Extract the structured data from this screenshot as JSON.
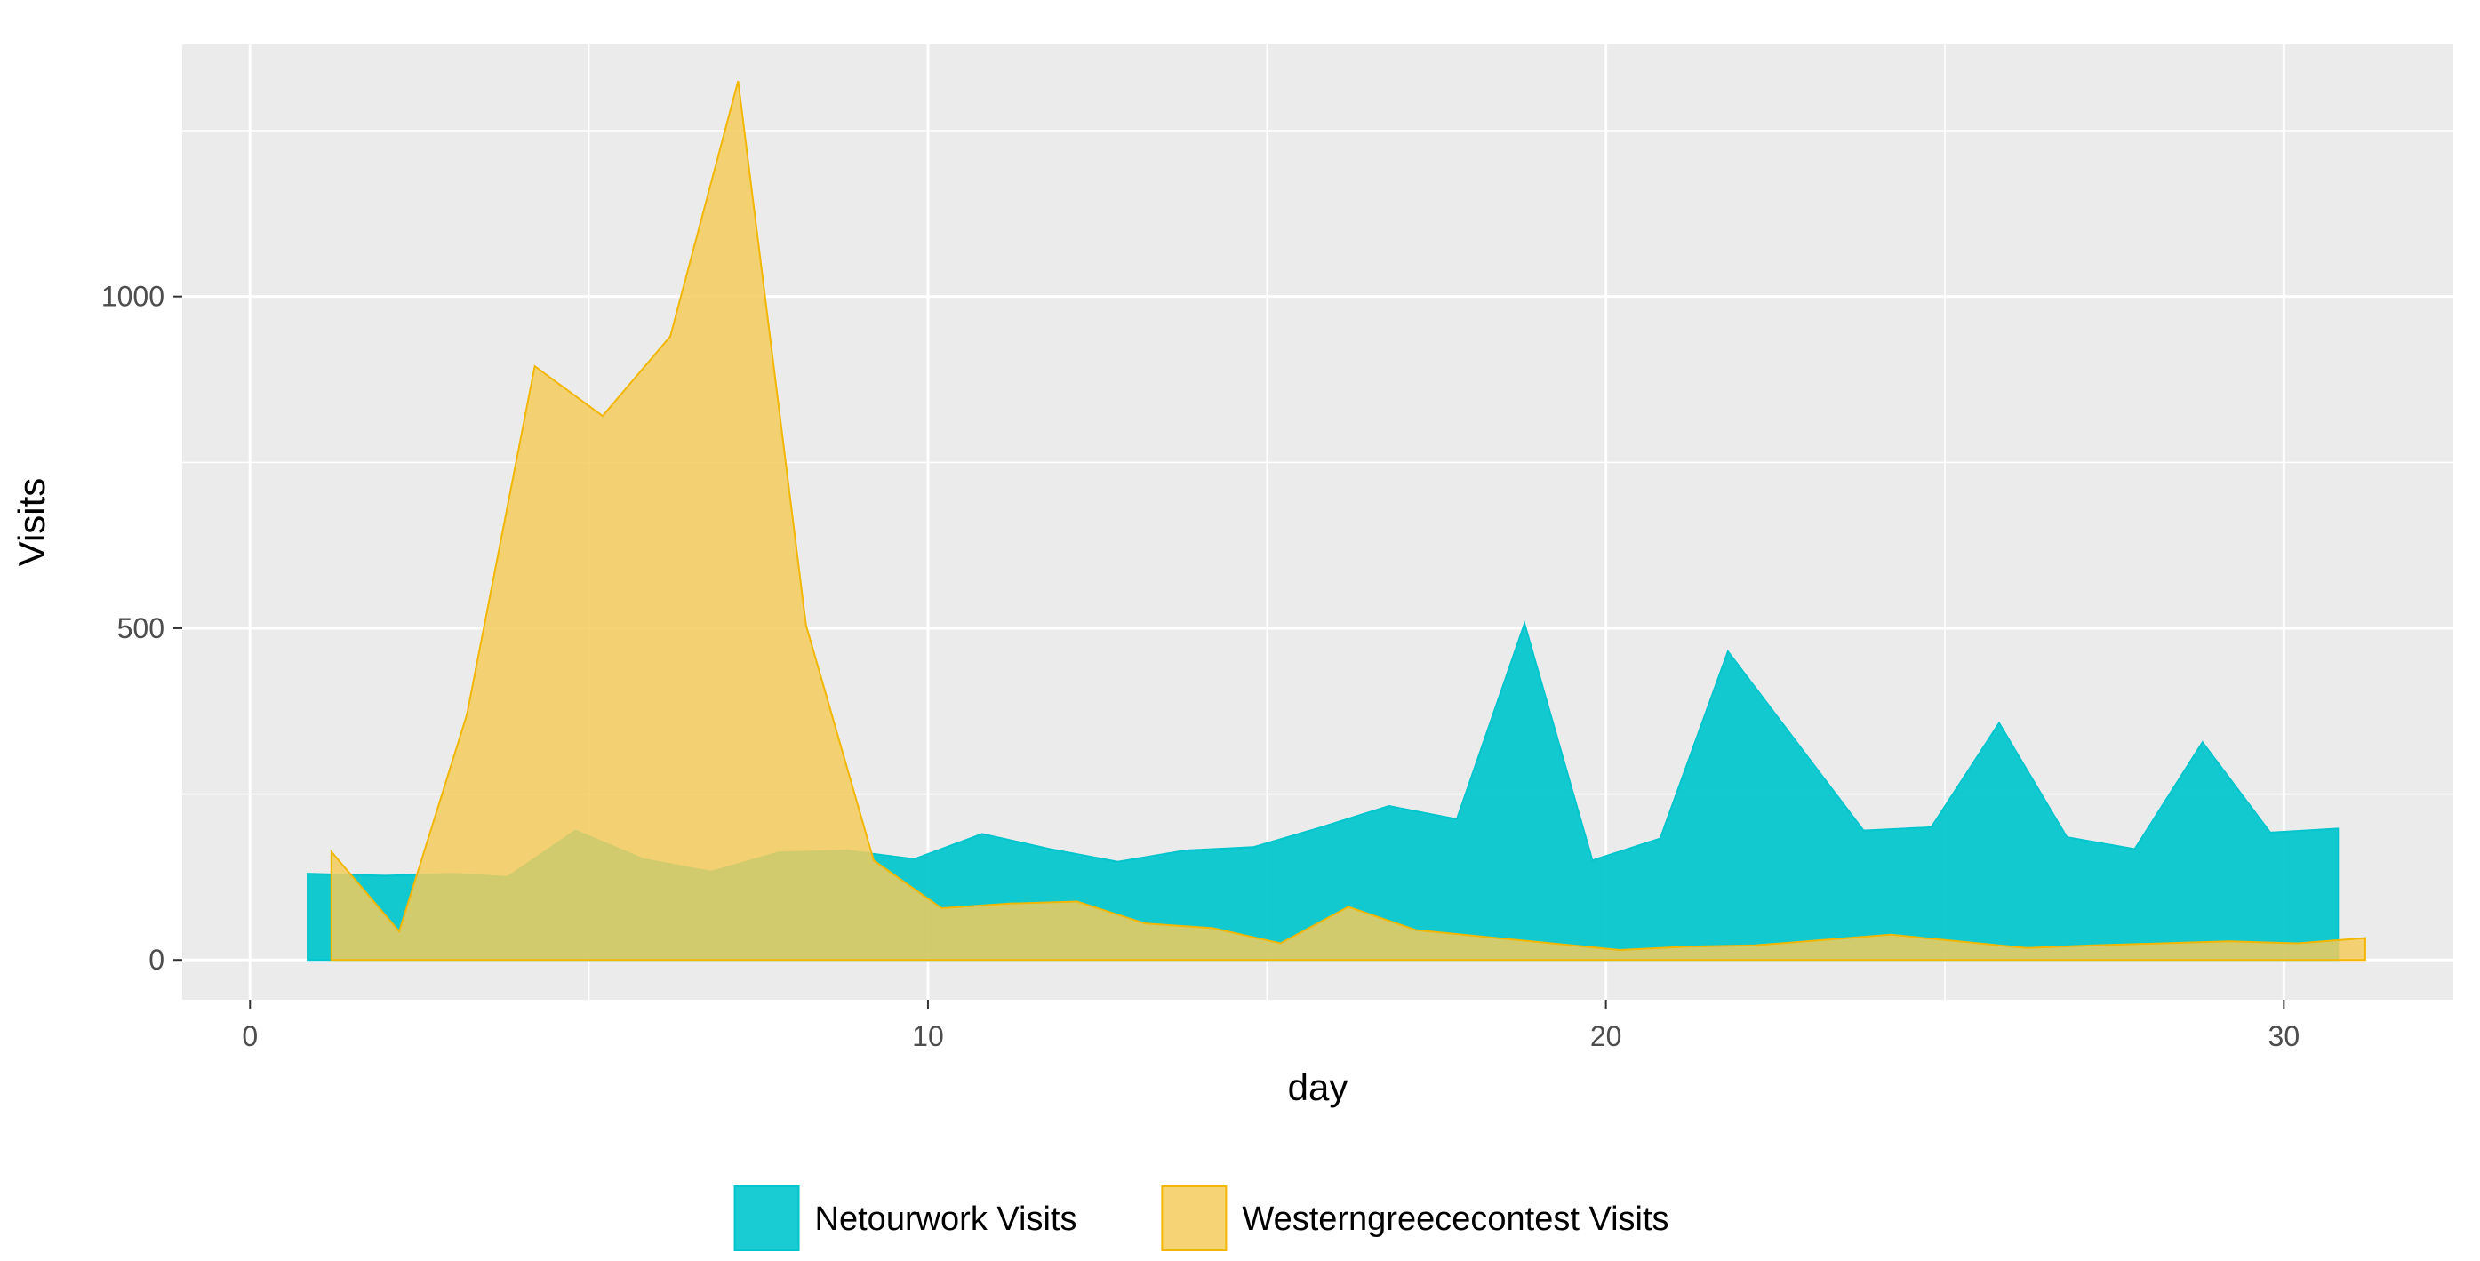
{
  "chart_data": {
    "type": "area",
    "title": "",
    "xlabel": "day",
    "ylabel": "Visits",
    "xlim": [
      -1.0,
      32.5
    ],
    "ylim": [
      -60,
      1380
    ],
    "x_ticks": [
      0,
      10,
      20,
      30
    ],
    "x_tick_labels": [
      "0",
      "10",
      "20",
      "30"
    ],
    "y_ticks": [
      0,
      500,
      1000
    ],
    "y_tick_labels": [
      "0",
      "500",
      "1000"
    ],
    "grid": true,
    "legend_position": "bottom",
    "series": [
      {
        "name": "Netourwork Visits",
        "fill": "#00C5CD",
        "stroke": "#00C5CD",
        "points": [
          [
            0.85,
            0
          ],
          [
            0.85,
            130
          ],
          [
            2,
            127
          ],
          [
            3,
            130
          ],
          [
            3.8,
            125
          ],
          [
            4.8,
            195
          ],
          [
            5.8,
            152
          ],
          [
            6.8,
            133
          ],
          [
            7.8,
            162
          ],
          [
            8.8,
            165
          ],
          [
            9.8,
            152
          ],
          [
            10.8,
            190
          ],
          [
            11.8,
            167
          ],
          [
            12.8,
            148
          ],
          [
            13.8,
            165
          ],
          [
            14.8,
            170
          ],
          [
            15.8,
            200
          ],
          [
            16.8,
            232
          ],
          [
            17.8,
            212
          ],
          [
            18.8,
            507
          ],
          [
            19.8,
            150
          ],
          [
            20.8,
            183
          ],
          [
            21.8,
            465
          ],
          [
            22.8,
            330
          ],
          [
            23.8,
            195
          ],
          [
            24.8,
            200
          ],
          [
            25.8,
            357
          ],
          [
            26.8,
            185
          ],
          [
            27.8,
            167
          ],
          [
            28.8,
            328
          ],
          [
            29.8,
            192
          ],
          [
            30.8,
            198
          ],
          [
            30.8,
            0
          ]
        ]
      },
      {
        "name": "Westerngreececontest Visits",
        "fill": "#F5CB5C",
        "stroke": "#F2B705",
        "points": [
          [
            1.2,
            0
          ],
          [
            1.2,
            163
          ],
          [
            2.2,
            43
          ],
          [
            3.2,
            370
          ],
          [
            4.2,
            895
          ],
          [
            5.2,
            820
          ],
          [
            6.2,
            940
          ],
          [
            7.2,
            1325
          ],
          [
            8.2,
            505
          ],
          [
            9.2,
            150
          ],
          [
            10.2,
            78
          ],
          [
            11.2,
            85
          ],
          [
            12.2,
            88
          ],
          [
            13.2,
            55
          ],
          [
            14.2,
            48
          ],
          [
            15.2,
            25
          ],
          [
            16.2,
            80
          ],
          [
            17.2,
            45
          ],
          [
            18.2,
            35
          ],
          [
            19.2,
            25
          ],
          [
            20.2,
            15
          ],
          [
            21.2,
            20
          ],
          [
            22.2,
            22
          ],
          [
            23.2,
            30
          ],
          [
            24.2,
            38
          ],
          [
            25.2,
            28
          ],
          [
            26.2,
            18
          ],
          [
            27.2,
            22
          ],
          [
            28.2,
            25
          ],
          [
            29.2,
            28
          ],
          [
            30.2,
            25
          ],
          [
            31.2,
            33
          ],
          [
            31.2,
            0
          ]
        ]
      }
    ]
  }
}
